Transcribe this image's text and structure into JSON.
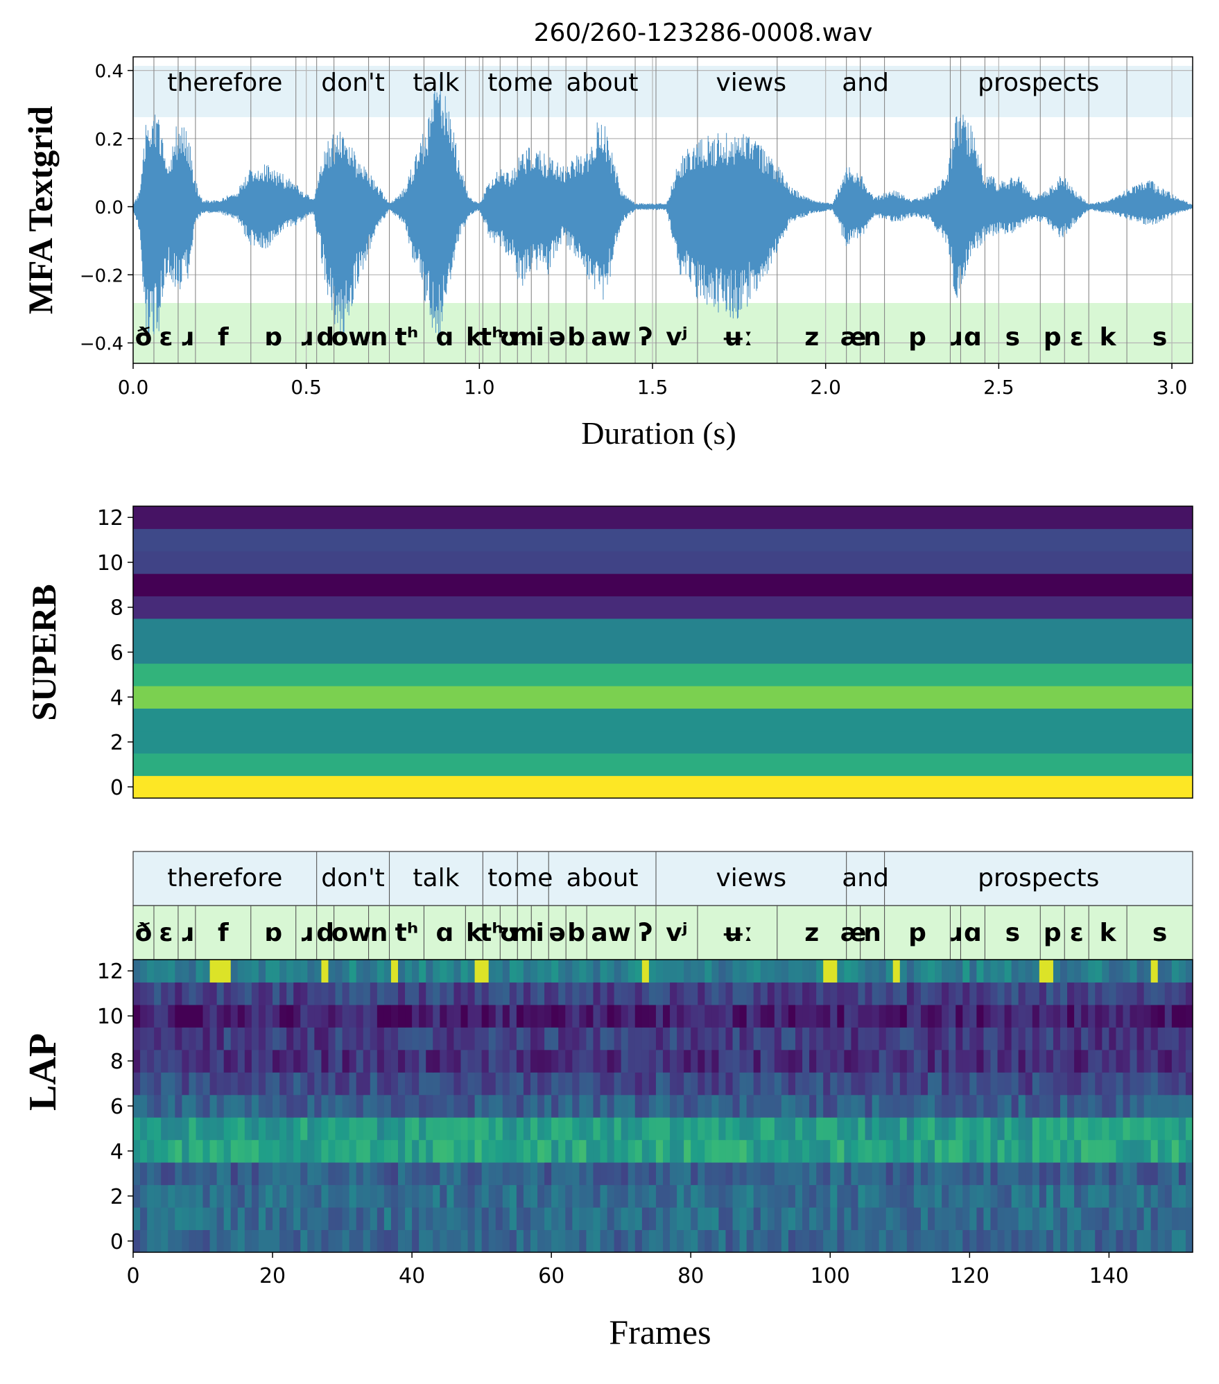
{
  "figure": {
    "title": "260/260-123286-0008.wav",
    "colors": {
      "wave": "#4a90c4",
      "word_tier": "#e4f2f8",
      "phone_tier": "#d8f7d4",
      "grid": "#9a9a9a"
    }
  },
  "panels": [
    {
      "id": "mfa",
      "ylabel": "MFA Textgrid",
      "xlabel": "Duration (s)"
    },
    {
      "id": "superb",
      "ylabel": "SUPERB",
      "xlabel": ""
    },
    {
      "id": "lap",
      "ylabel": "LAP",
      "xlabel": "Frames"
    }
  ],
  "chart_data": [
    {
      "type": "line",
      "title": "260/260-123286-0008.wav",
      "xlabel": "Duration (s)",
      "ylabel": "MFA Textgrid",
      "xlim": [
        0,
        3.06
      ],
      "ylim": [
        -0.46,
        0.44
      ],
      "xticks": [
        "0.0",
        "0.5",
        "1.0",
        "1.5",
        "2.0",
        "2.5",
        "3.0"
      ],
      "yticks": [
        "−0.4",
        "−0.2",
        "0.0",
        "0.2",
        "0.4"
      ],
      "grid": true,
      "series": [
        {
          "envelope": [
            [
              0,
              0.01,
              -0.01
            ],
            [
              0.02,
              0.05,
              -0.1
            ],
            [
              0.04,
              0.28,
              -0.42
            ],
            [
              0.07,
              0.3,
              -0.4
            ],
            [
              0.1,
              0.1,
              -0.2
            ],
            [
              0.13,
              0.27,
              -0.25
            ],
            [
              0.16,
              0.22,
              -0.22
            ],
            [
              0.18,
              0.08,
              -0.05
            ],
            [
              0.2,
              0.02,
              -0.02
            ],
            [
              0.25,
              0.02,
              -0.02
            ],
            [
              0.3,
              0.05,
              -0.04
            ],
            [
              0.34,
              0.12,
              -0.12
            ],
            [
              0.38,
              0.13,
              -0.13
            ],
            [
              0.43,
              0.1,
              -0.08
            ],
            [
              0.48,
              0.06,
              -0.05
            ],
            [
              0.52,
              0.02,
              -0.02
            ],
            [
              0.56,
              0.2,
              -0.25
            ],
            [
              0.6,
              0.23,
              -0.44
            ],
            [
              0.63,
              0.18,
              -0.3
            ],
            [
              0.66,
              0.13,
              -0.2
            ],
            [
              0.7,
              0.08,
              -0.08
            ],
            [
              0.74,
              0.01,
              -0.01
            ],
            [
              0.78,
              0.05,
              -0.05
            ],
            [
              0.82,
              0.16,
              -0.2
            ],
            [
              0.86,
              0.3,
              -0.35
            ],
            [
              0.88,
              0.44,
              -0.42
            ],
            [
              0.91,
              0.3,
              -0.25
            ],
            [
              0.94,
              0.15,
              -0.1
            ],
            [
              0.97,
              0.03,
              -0.03
            ],
            [
              1.0,
              0.01,
              -0.01
            ],
            [
              1.03,
              0.08,
              -0.1
            ],
            [
              1.06,
              0.12,
              -0.12
            ],
            [
              1.09,
              0.1,
              -0.15
            ],
            [
              1.12,
              0.17,
              -0.25
            ],
            [
              1.15,
              0.18,
              -0.18
            ],
            [
              1.2,
              0.15,
              -0.2
            ],
            [
              1.24,
              0.12,
              -0.1
            ],
            [
              1.28,
              0.16,
              -0.15
            ],
            [
              1.32,
              0.18,
              -0.22
            ],
            [
              1.35,
              0.28,
              -0.3
            ],
            [
              1.38,
              0.18,
              -0.2
            ],
            [
              1.41,
              0.05,
              -0.05
            ],
            [
              1.45,
              0.01,
              -0.01
            ],
            [
              1.5,
              0.01,
              -0.01
            ],
            [
              1.54,
              0.01,
              -0.01
            ],
            [
              1.58,
              0.15,
              -0.2
            ],
            [
              1.63,
              0.2,
              -0.28
            ],
            [
              1.7,
              0.22,
              -0.33
            ],
            [
              1.75,
              0.22,
              -0.33
            ],
            [
              1.8,
              0.2,
              -0.27
            ],
            [
              1.86,
              0.13,
              -0.13
            ],
            [
              1.9,
              0.06,
              -0.05
            ],
            [
              1.96,
              0.02,
              -0.02
            ],
            [
              2.02,
              0.01,
              -0.01
            ],
            [
              2.06,
              0.12,
              -0.12
            ],
            [
              2.1,
              0.1,
              -0.1
            ],
            [
              2.14,
              0.03,
              -0.03
            ],
            [
              2.2,
              0.05,
              -0.05
            ],
            [
              2.25,
              0.02,
              -0.03
            ],
            [
              2.3,
              0.04,
              -0.04
            ],
            [
              2.35,
              0.1,
              -0.12
            ],
            [
              2.38,
              0.3,
              -0.3
            ],
            [
              2.42,
              0.25,
              -0.15
            ],
            [
              2.46,
              0.1,
              -0.1
            ],
            [
              2.5,
              0.08,
              -0.08
            ],
            [
              2.55,
              0.1,
              -0.08
            ],
            [
              2.6,
              0.03,
              -0.04
            ],
            [
              2.64,
              0.05,
              -0.05
            ],
            [
              2.68,
              0.1,
              -0.1
            ],
            [
              2.72,
              0.05,
              -0.05
            ],
            [
              2.76,
              0.01,
              -0.01
            ],
            [
              2.82,
              0.02,
              -0.02
            ],
            [
              2.88,
              0.06,
              -0.04
            ],
            [
              2.94,
              0.08,
              -0.06
            ],
            [
              3.0,
              0.04,
              -0.03
            ],
            [
              3.06,
              0.005,
              -0.005
            ]
          ]
        }
      ],
      "word_tier": [
        [
          "therefore",
          0.0,
          0.53
        ],
        [
          "don't",
          0.53,
          0.74
        ],
        [
          "talk",
          0.74,
          1.01
        ],
        [
          "to",
          1.01,
          1.11
        ],
        [
          "me",
          1.11,
          1.2
        ],
        [
          "about",
          1.2,
          1.51
        ],
        [
          "views",
          1.51,
          2.06
        ],
        [
          "and",
          2.06,
          2.17
        ],
        [
          "prospects",
          2.17,
          3.06
        ]
      ],
      "phone_tier": [
        [
          "ð",
          0.0,
          0.06
        ],
        [
          "ɛ",
          0.06,
          0.13
        ],
        [
          "ɹ",
          0.13,
          0.18
        ],
        [
          "f",
          0.18,
          0.34
        ],
        [
          "ɒ",
          0.34,
          0.47
        ],
        [
          "ɹ",
          0.47,
          0.53
        ],
        [
          "d",
          0.53,
          0.58
        ],
        [
          "ow",
          0.58,
          0.68
        ],
        [
          "n",
          0.68,
          0.74
        ],
        [
          "tʰ",
          0.74,
          0.84
        ],
        [
          "ɑ",
          0.84,
          0.96
        ],
        [
          "k",
          0.96,
          1.01
        ],
        [
          "tʰ",
          1.01,
          1.06
        ],
        [
          "ʊ",
          1.06,
          1.11
        ],
        [
          "m",
          1.11,
          1.15
        ],
        [
          "i",
          1.15,
          1.2
        ],
        [
          "ə",
          1.2,
          1.25
        ],
        [
          "b",
          1.25,
          1.31
        ],
        [
          "aw",
          1.31,
          1.45
        ],
        [
          "ʔ",
          1.45,
          1.51
        ],
        [
          "vʲ",
          1.51,
          1.63
        ],
        [
          "ʉː",
          1.63,
          1.86
        ],
        [
          "z",
          1.86,
          2.06
        ],
        [
          "æ",
          2.06,
          2.1
        ],
        [
          "n",
          2.1,
          2.17
        ],
        [
          "p",
          2.17,
          2.36
        ],
        [
          "ɹ",
          2.36,
          2.39
        ],
        [
          "ɑ",
          2.39,
          2.46
        ],
        [
          "s",
          2.46,
          2.62
        ],
        [
          "p",
          2.62,
          2.69
        ],
        [
          "ɛ",
          2.69,
          2.76
        ],
        [
          "k",
          2.76,
          2.87
        ],
        [
          "s",
          2.87,
          3.06
        ]
      ]
    },
    {
      "type": "heatmap",
      "ylabel": "SUPERB",
      "ylim": [
        -0.5,
        12.5
      ],
      "yticks": [
        "0",
        "2",
        "4",
        "6",
        "8",
        "10",
        "12"
      ],
      "colormap": "viridis",
      "layer_values": [
        1.0,
        0.62,
        0.5,
        0.5,
        0.8,
        0.65,
        0.45,
        0.45,
        0.12,
        0.0,
        0.2,
        0.22,
        0.05
      ]
    },
    {
      "type": "heatmap",
      "xlabel": "Frames",
      "ylabel": "LAP",
      "xlim": [
        0,
        152
      ],
      "ylim": [
        -0.5,
        12.5
      ],
      "xticks": [
        "0",
        "20",
        "40",
        "60",
        "80",
        "100",
        "120",
        "140"
      ],
      "yticks": [
        "0",
        "2",
        "4",
        "6",
        "8",
        "10",
        "12"
      ],
      "colormap": "viridis",
      "layer_means": [
        0.33,
        0.35,
        0.36,
        0.3,
        0.58,
        0.55,
        0.3,
        0.22,
        0.15,
        0.18,
        0.08,
        0.2,
        0.42
      ],
      "bright_frames_layer12": [
        11,
        12,
        13,
        27,
        37,
        49,
        50,
        73,
        99,
        100,
        109,
        130,
        131,
        146
      ]
    }
  ]
}
